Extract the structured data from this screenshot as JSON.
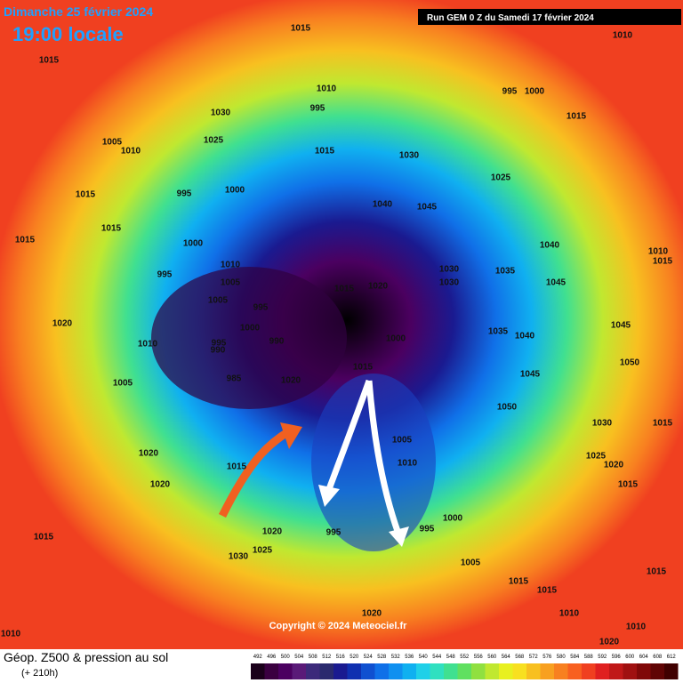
{
  "header": {
    "date": "Dimanche 25 février 2024",
    "time": "19:00 locale",
    "run": "Run GEM 0 Z du Samedi 17 février 2024"
  },
  "footer": {
    "title": "Géop. Z500 & pression au sol",
    "lead": "(+ 210h)",
    "copyright": "Copyright © 2024 Meteociel.fr"
  },
  "scale": {
    "ticks": [
      492,
      496,
      500,
      504,
      508,
      512,
      516,
      520,
      524,
      528,
      532,
      536,
      540,
      544,
      548,
      552,
      556,
      560,
      564,
      568,
      572,
      576,
      580,
      584,
      588,
      592,
      596,
      600,
      604,
      608,
      612
    ],
    "colors": [
      "#1a001a",
      "#3a0040",
      "#4b0060",
      "#5a1a78",
      "#3c2a7a",
      "#2a2a6e",
      "#1a1a90",
      "#1030b0",
      "#1050d0",
      "#1070e8",
      "#1090f0",
      "#10b0f0",
      "#20d0e8",
      "#30e0c0",
      "#40e090",
      "#60e060",
      "#90e040",
      "#c0e830",
      "#e8f020",
      "#f8e020",
      "#f8c020",
      "#f8a020",
      "#f88020",
      "#f86020",
      "#f04020",
      "#e02020",
      "#c01818",
      "#a01010",
      "#800808",
      "#600404",
      "#400000"
    ]
  },
  "isobars": [
    "1015",
    "1010",
    "1015",
    "1010",
    "995",
    "1000",
    "995",
    "1030",
    "1015",
    "1005",
    "1025",
    "1010",
    "1015",
    "1030",
    "1025",
    "1015",
    "995",
    "1000",
    "1040",
    "1045",
    "1015",
    "1015",
    "1000",
    "1040",
    "1010",
    "1015",
    "995",
    "1010",
    "1030",
    "1035",
    "1005",
    "1020",
    "1030",
    "1015",
    "1045",
    "1005",
    "995",
    "1020",
    "1000",
    "1000",
    "1045",
    "1035",
    "1040",
    "990",
    "1010",
    "995",
    "990",
    "1050",
    "1015",
    "1045",
    "1005",
    "985",
    "1020",
    "1050",
    "1030",
    "1015",
    "1005",
    "1020",
    "1015",
    "1010",
    "1025",
    "1020",
    "1020",
    "1015",
    "1000",
    "995",
    "995",
    "1020",
    "1015",
    "1025",
    "1030",
    "1005",
    "1015",
    "1015",
    "1015",
    "1020",
    "1010",
    "1010",
    "1010",
    "1020"
  ]
}
